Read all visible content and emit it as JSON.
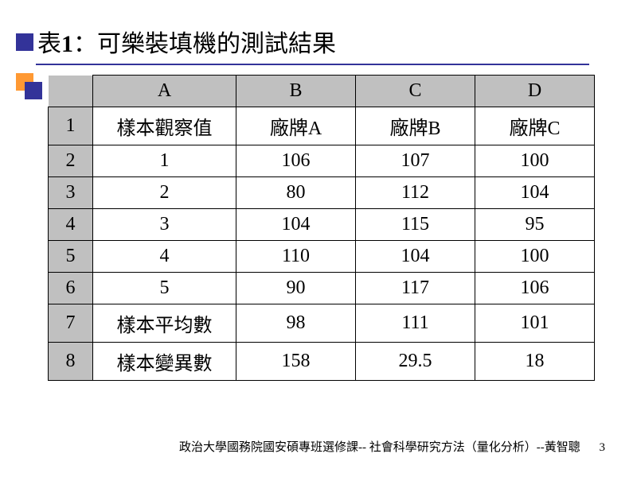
{
  "title_prefix": "表",
  "title_number": "1",
  "title_suffix": "：可樂裝填機的測試結果",
  "table": {
    "col_headers": [
      "A",
      "B",
      "C",
      "D"
    ],
    "row_numbers": [
      "1",
      "2",
      "3",
      "4",
      "5",
      "6",
      "7",
      "8"
    ],
    "rows": [
      [
        "樣本觀察值",
        "廠牌A",
        "廠牌B",
        "廠牌C"
      ],
      [
        "1",
        "106",
        "107",
        "100"
      ],
      [
        "2",
        "80",
        "112",
        "104"
      ],
      [
        "3",
        "104",
        "115",
        "95"
      ],
      [
        "4",
        "110",
        "104",
        "100"
      ],
      [
        "5",
        "90",
        "117",
        "106"
      ],
      [
        "樣本平均數",
        "98",
        "111",
        "101"
      ],
      [
        "樣本變異數",
        "158",
        "29.5",
        "18"
      ]
    ],
    "header_bg": "#c0c0c0",
    "cell_bg": "#ffffff",
    "border_color": "#000000",
    "font_size": 24
  },
  "accent": {
    "navy": "#333399",
    "orange": "#ff9933"
  },
  "footer_text": "政治大學國務院國安碩專班選修課-- 社會科學研究方法（量化分析）--黃智聰",
  "page_number": "3"
}
